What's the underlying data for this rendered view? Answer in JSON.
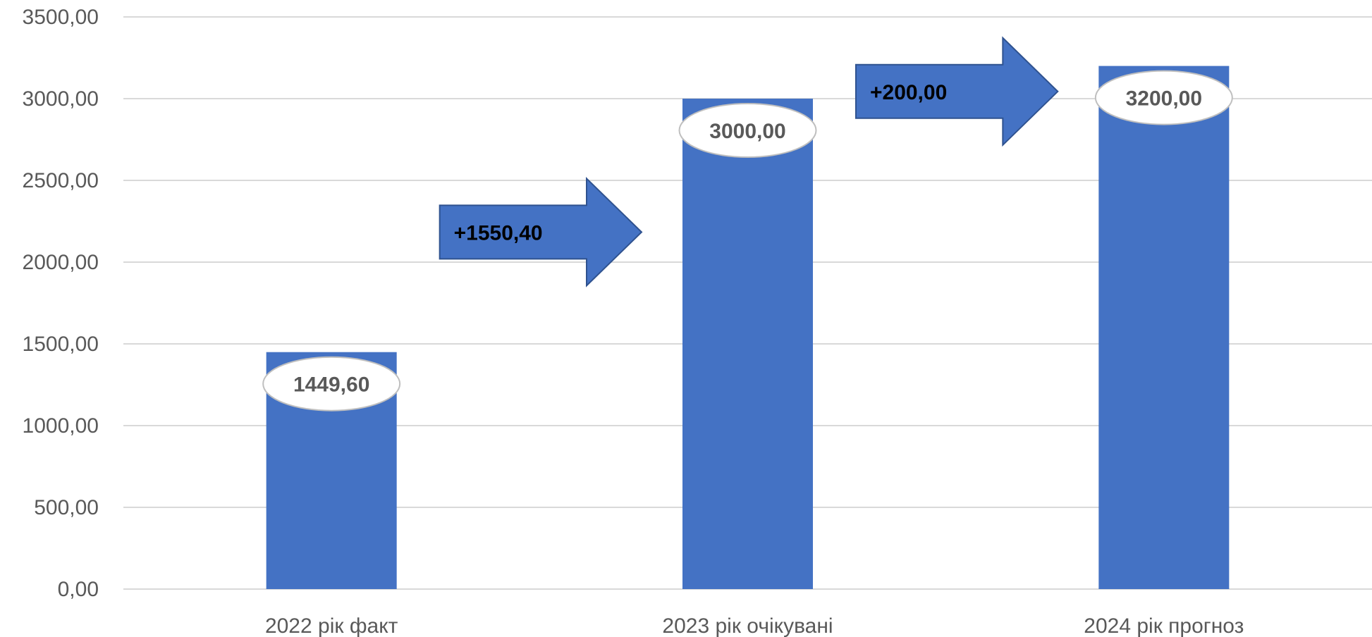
{
  "chart_data": {
    "type": "bar",
    "categories": [
      "2022 рік факт",
      "2023 рік очікувані",
      "2024 рік прогноз"
    ],
    "values": [
      1449.6,
      3000.0,
      3200.0
    ],
    "data_labels": [
      "1449,60",
      "3000,00",
      "3200,00"
    ],
    "yticks": [
      "0,00",
      "500,00",
      "1000,00",
      "1500,00",
      "2000,00",
      "2500,00",
      "3000,00",
      "3500,00"
    ],
    "ylim": [
      0,
      3500
    ],
    "grid": true,
    "legend": "none",
    "annotations": [
      {
        "text": "+1550,40",
        "shape": "right-arrow",
        "between": [
          0,
          1
        ]
      },
      {
        "text": "+200,00",
        "shape": "right-arrow",
        "between": [
          1,
          2
        ]
      }
    ],
    "colors": {
      "bar": "#4472C4",
      "grid": "#D9D9D9",
      "text": "#595959",
      "arrow_stroke": "#2F528F"
    }
  }
}
